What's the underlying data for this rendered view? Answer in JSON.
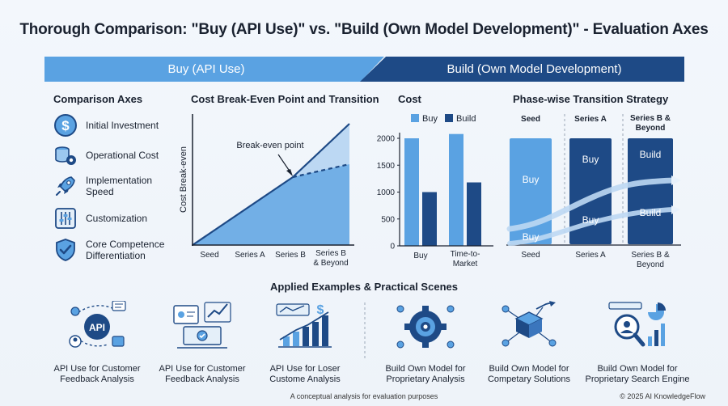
{
  "title": "Thorough Comparison: \"Buy (API Use)\" vs. \"Build (Own Model Development)\" - Evaluation Axes",
  "banner": {
    "buy": "Buy (API Use)",
    "build": "Build (Own Model Development)"
  },
  "axes": {
    "heading": "Comparison Axes",
    "items": [
      {
        "icon": "dollar-coin-icon",
        "label": "Initial Investment"
      },
      {
        "icon": "coins-gear-icon",
        "label": "Operational Cost"
      },
      {
        "icon": "rocket-icon",
        "label": "Implementation Speed",
        "lines": [
          "Implementation",
          "Speed"
        ]
      },
      {
        "icon": "sliders-icon",
        "label": "Customization"
      },
      {
        "icon": "shield-check-icon",
        "label": "Core Competence Differentiation",
        "lines": [
          "Core Competence",
          "Differentiation"
        ]
      }
    ]
  },
  "breakeven": {
    "heading": "Cost Break-Even Point and Transition",
    "ylabel": "Cost Break-even",
    "annotation": "Break-even point",
    "x_ticks": [
      "Seed",
      "Series A",
      "Series B",
      "Series B & Beyond"
    ],
    "x_tick_lines": [
      [
        "Seed"
      ],
      [
        "Series A"
      ],
      [
        "Series B"
      ],
      [
        "Series B",
        "& Beyond"
      ]
    ]
  },
  "cost_chart": {
    "heading": "Cost",
    "legend": {
      "buy": "Buy",
      "build": "Build"
    },
    "colors": {
      "buy": "#5aa2e2",
      "build": "#1e4a86"
    }
  },
  "chart_data": {
    "type": "bar",
    "categories": [
      "Buy",
      "Time-to-Market"
    ],
    "category_lines": [
      [
        "Buy"
      ],
      [
        "Time-to-",
        "Market"
      ]
    ],
    "series": [
      {
        "name": "Buy",
        "values": [
          2000,
          2080
        ]
      },
      {
        "name": "Build",
        "values": [
          1000,
          1180
        ]
      }
    ],
    "ylim": [
      0,
      2000
    ],
    "y_ticks": [
      0,
      500,
      1000,
      1500,
      2000
    ],
    "legend_position": "top",
    "grid": false
  },
  "phase": {
    "heading": "Phase-wise Transition Strategy",
    "columns": [
      {
        "top": [
          "Seed"
        ],
        "bottom": [
          "Seed"
        ]
      },
      {
        "top": [
          "Series A"
        ],
        "bottom": [
          "Series A"
        ]
      },
      {
        "top": [
          "Series B &",
          "Beyond"
        ],
        "bottom": [
          "Series B &",
          "Beyond"
        ]
      }
    ],
    "labels": {
      "seed_buy": "Buy",
      "seed_buy_low": "Buy",
      "a_buy_top": "Buy",
      "a_buy_low": "Buy",
      "b_build_top": "Build",
      "b_build_low": "Build"
    }
  },
  "examples": {
    "heading": "Applied Examples & Practical Scenes",
    "api_badge": "API",
    "items": [
      {
        "icon": "api-network-icon",
        "lines": [
          "API Use for Customer",
          "Feedback Analysis"
        ]
      },
      {
        "icon": "feedback-dashboard-icon",
        "lines": [
          "API Use for Customer",
          "Feedback Analysis"
        ]
      },
      {
        "icon": "growth-chart-icon",
        "lines": [
          "API Use for Loser",
          "Custome Analysis"
        ]
      },
      {
        "icon": "gear-network-icon",
        "lines": [
          "Build Own Model for",
          "Proprietary Analysis"
        ]
      },
      {
        "icon": "cube-network-icon",
        "lines": [
          "Build Own Model for",
          "Competary Solutions"
        ]
      },
      {
        "icon": "search-engine-icon",
        "lines": [
          "Build Own Model for",
          "Proprietary Search Engine"
        ]
      }
    ]
  },
  "footer": {
    "note": "A conceptual analysis for evaluation purposes",
    "copyright": "© 2025 AI KnowledgeFlow"
  }
}
